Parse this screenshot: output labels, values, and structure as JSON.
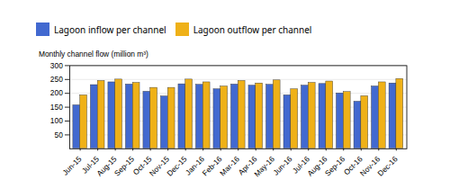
{
  "chart_data": {
    "type": "bar",
    "categories": [
      "Jun-15",
      "Jul-15",
      "Aug-15",
      "Sep-15",
      "Oct-15",
      "Nov-15",
      "Dec-15",
      "Jan-16",
      "Feb-16",
      "Mar-16",
      "Apr-16",
      "May-16",
      "Jun-16",
      "Jul-16",
      "Aug-16",
      "Sep-16",
      "Oct-16",
      "Nov-16",
      "Dec-16"
    ],
    "series": [
      {
        "name": "Lagoon inflow per channel",
        "values": [
          157,
          230,
          240,
          232,
          206,
          189,
          233,
          231,
          215,
          232,
          228,
          231,
          193,
          228,
          234,
          200,
          170,
          225,
          236
        ]
      },
      {
        "name": "Lagoon outflow per channel",
        "values": [
          193,
          245,
          250,
          238,
          220,
          220,
          250,
          240,
          225,
          245,
          236,
          247,
          215,
          238,
          243,
          205,
          190,
          240,
          252
        ]
      }
    ],
    "ylabel": "Monthly channel flow (million m³)",
    "ylim": [
      0,
      300
    ],
    "yticks": [
      50,
      100,
      150,
      200,
      250,
      300
    ],
    "grid": true,
    "legend": "top"
  }
}
